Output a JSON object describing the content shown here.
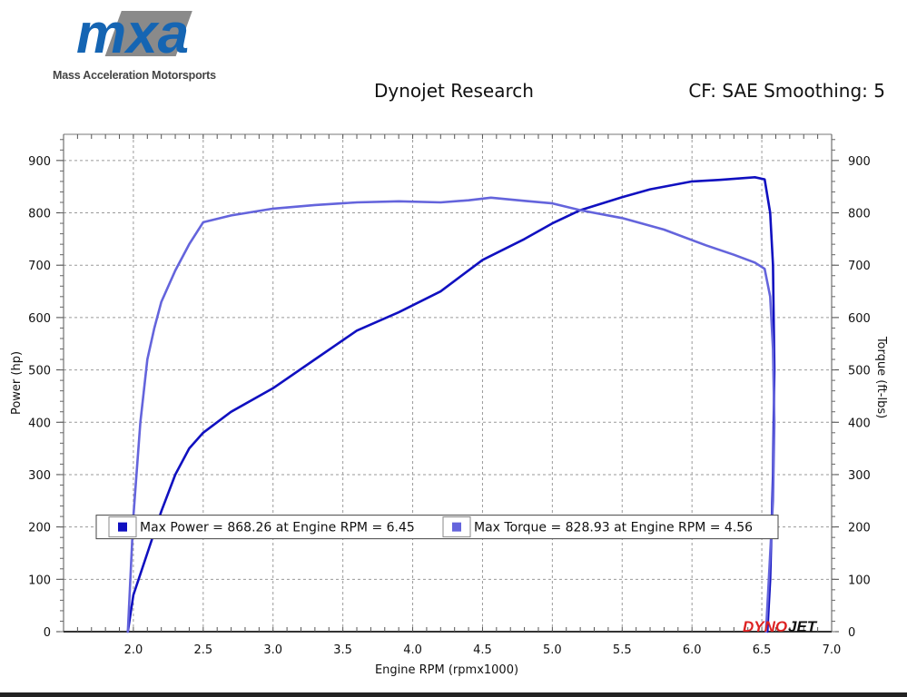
{
  "logo": {
    "mark_text": "mxa",
    "subtitle": "Mass Acceleration Motorsports",
    "colors": {
      "blue": "#1565b3",
      "gray": "#8a8a8a"
    }
  },
  "header": {
    "title": "Dynojet Research",
    "correction": "CF: SAE Smoothing: 5"
  },
  "watermark": {
    "text_red": "DYNO",
    "text_black": "JET"
  },
  "chart_data": {
    "type": "line",
    "xlabel": "Engine RPM (rpmx1000)",
    "ylabel_left": "Power (hp)",
    "ylabel_right": "Torque (ft-lbs)",
    "xlim": [
      1.5,
      7.0
    ],
    "ylim": [
      0,
      950
    ],
    "x_ticks": [
      "2.0",
      "2.5",
      "3.0",
      "3.5",
      "4.0",
      "4.5",
      "5.0",
      "5.5",
      "6.0",
      "6.5",
      "7.0"
    ],
    "y_ticks": [
      "0",
      "100",
      "200",
      "300",
      "400",
      "500",
      "600",
      "700",
      "800",
      "900"
    ],
    "grid": true,
    "legend_position": "lower-center",
    "series": [
      {
        "name": "Max Power = 868.26 at Engine RPM = 6.45",
        "color": "#1010c0",
        "points": [
          [
            1.96,
            0
          ],
          [
            2.0,
            70
          ],
          [
            2.1,
            150
          ],
          [
            2.2,
            230
          ],
          [
            2.3,
            300
          ],
          [
            2.4,
            350
          ],
          [
            2.5,
            380
          ],
          [
            2.7,
            420
          ],
          [
            3.0,
            465
          ],
          [
            3.3,
            520
          ],
          [
            3.6,
            575
          ],
          [
            3.9,
            610
          ],
          [
            4.2,
            650
          ],
          [
            4.5,
            710
          ],
          [
            4.8,
            750
          ],
          [
            5.0,
            780
          ],
          [
            5.2,
            805
          ],
          [
            5.5,
            830
          ],
          [
            5.7,
            845
          ],
          [
            6.0,
            860
          ],
          [
            6.2,
            863
          ],
          [
            6.45,
            868
          ],
          [
            6.52,
            864
          ],
          [
            6.56,
            800
          ],
          [
            6.58,
            700
          ],
          [
            6.59,
            500
          ],
          [
            6.58,
            300
          ],
          [
            6.56,
            100
          ],
          [
            6.54,
            0
          ]
        ]
      },
      {
        "name": "Max Torque = 828.93 at Engine RPM = 4.56",
        "color": "#6464dc",
        "points": [
          [
            1.96,
            0
          ],
          [
            2.0,
            220
          ],
          [
            2.05,
            400
          ],
          [
            2.1,
            520
          ],
          [
            2.15,
            580
          ],
          [
            2.2,
            630
          ],
          [
            2.3,
            690
          ],
          [
            2.4,
            740
          ],
          [
            2.5,
            782
          ],
          [
            2.7,
            795
          ],
          [
            3.0,
            808
          ],
          [
            3.3,
            815
          ],
          [
            3.6,
            820
          ],
          [
            3.9,
            822
          ],
          [
            4.2,
            820
          ],
          [
            4.4,
            824
          ],
          [
            4.56,
            829
          ],
          [
            4.8,
            823
          ],
          [
            5.0,
            818
          ],
          [
            5.2,
            805
          ],
          [
            5.5,
            790
          ],
          [
            5.8,
            768
          ],
          [
            6.1,
            738
          ],
          [
            6.3,
            720
          ],
          [
            6.45,
            705
          ],
          [
            6.52,
            693
          ],
          [
            6.56,
            640
          ],
          [
            6.58,
            540
          ],
          [
            6.59,
            400
          ],
          [
            6.58,
            250
          ],
          [
            6.55,
            100
          ],
          [
            6.53,
            0
          ]
        ]
      }
    ]
  }
}
